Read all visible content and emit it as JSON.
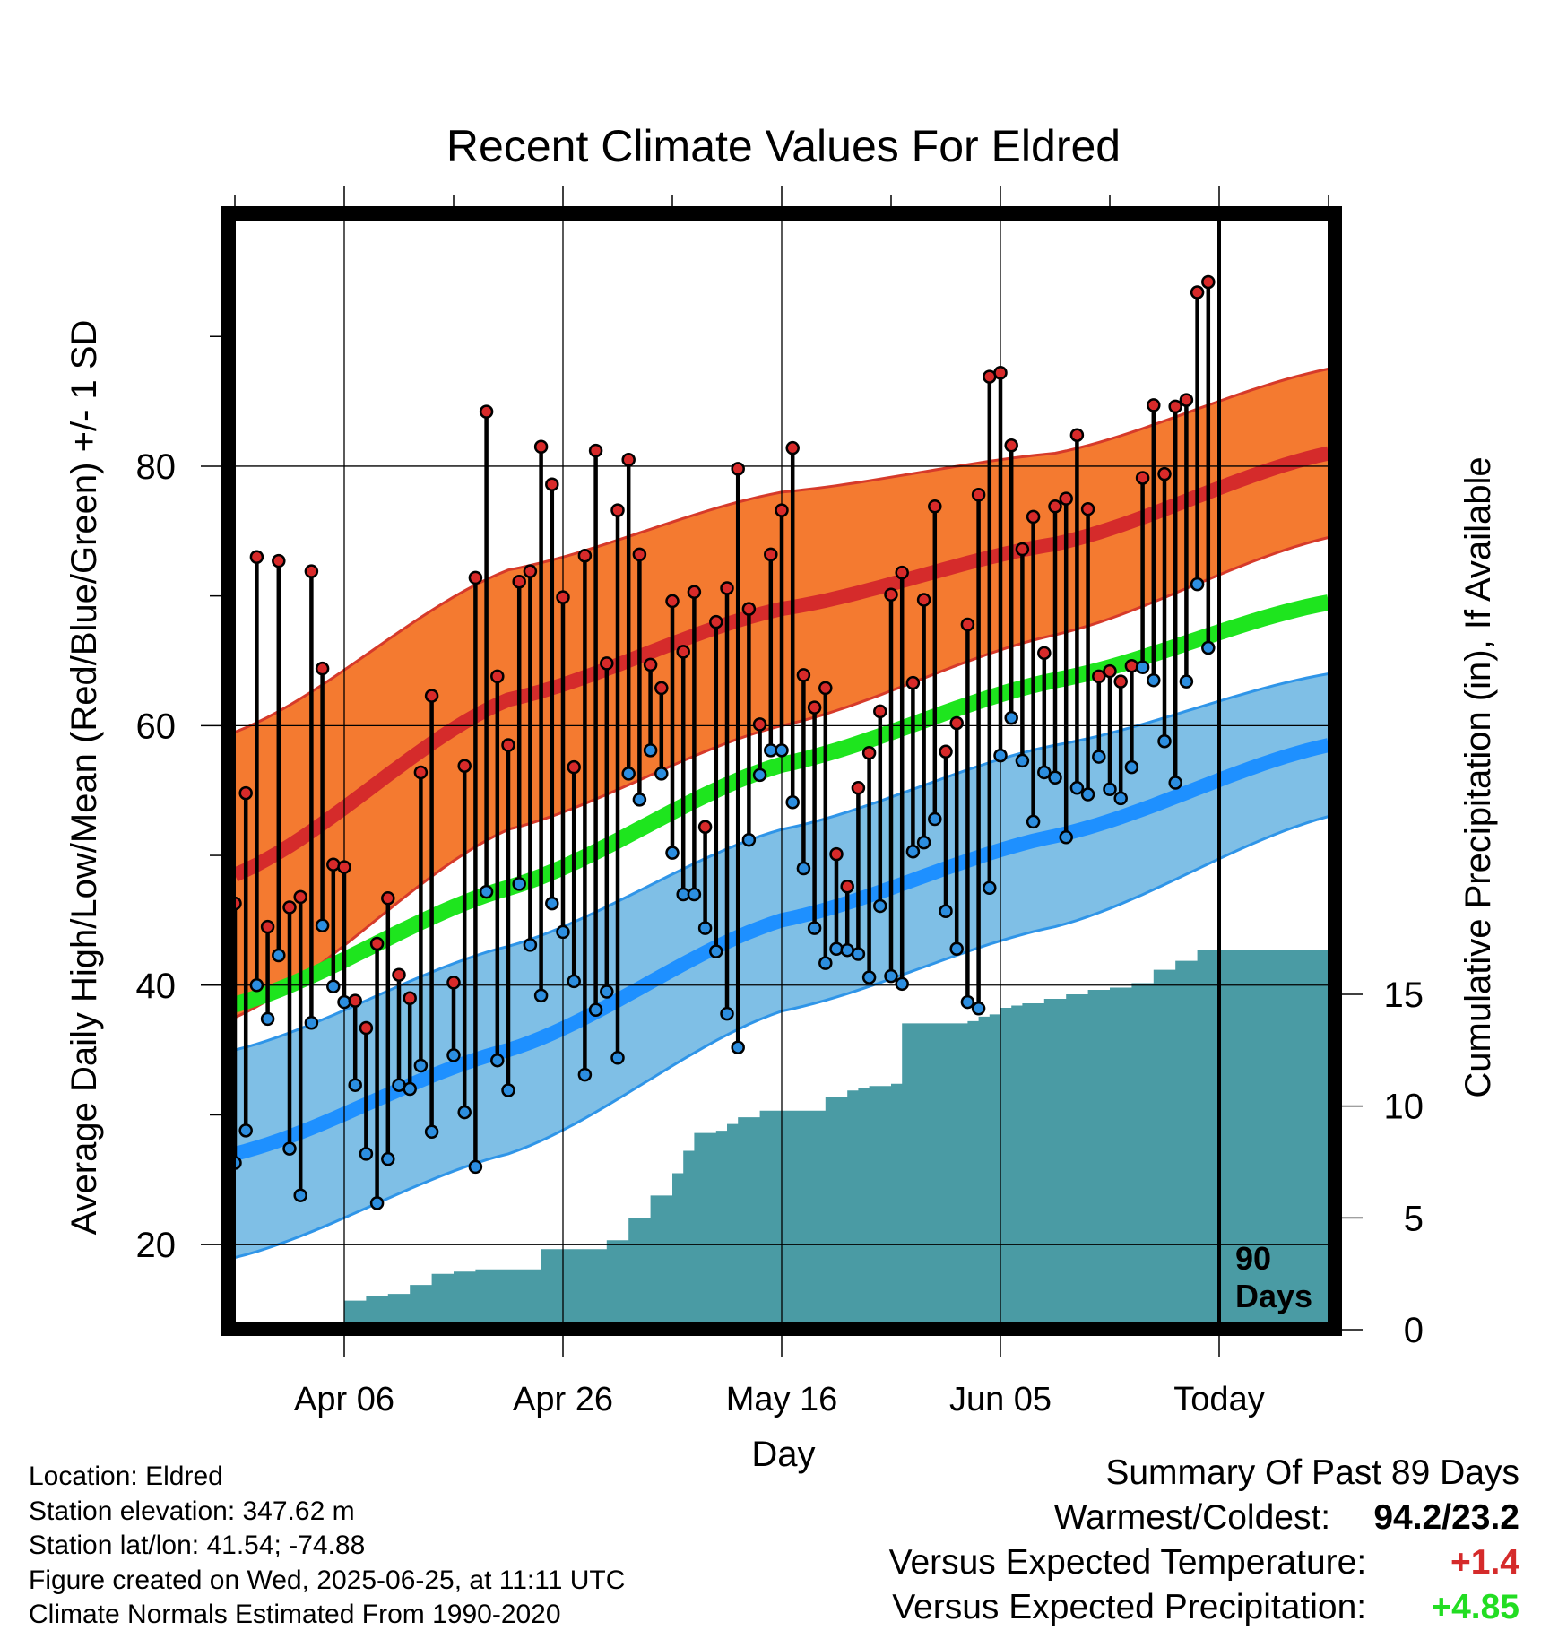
{
  "chart_data": {
    "type": "line",
    "title": "Recent Climate Values For Eldred",
    "xlabel": "Day",
    "ylabel_left": "Average Daily High/Low/Mean (Red/Blue/Green) +/- 1 SD",
    "ylabel_right": "Cumulative Precipitation (in), If Available",
    "x_tick_labels": [
      "Apr 06",
      "Apr 26",
      "May 16",
      "Jun 05",
      "Today"
    ],
    "x_tick_days": [
      10,
      30,
      50,
      70,
      90
    ],
    "x_range": [
      0,
      100
    ],
    "y_left_ticks": [
      20,
      40,
      60,
      80
    ],
    "y_left_range": [
      14,
      99
    ],
    "y_right_ticks": [
      0,
      5,
      10,
      15
    ],
    "y_right_range": [
      0,
      15
    ],
    "grid": true,
    "today_marker": {
      "day": 90,
      "label_line1": "90",
      "label_line2": "Days"
    },
    "colors": {
      "high_band": "#f47a30",
      "high_band_edge": "#d63a2a",
      "high_mean": "#d52b2b",
      "low_band": "#7fbfe6",
      "low_band_edge": "#2f95e8",
      "low_mean": "#1e90ff",
      "mean": "#1ee51e",
      "precip": "#4a9ba4",
      "high_dot": "#d82a2a",
      "low_dot": "#2c8ee0"
    },
    "normals": {
      "days": [
        0,
        25,
        50,
        75,
        100
      ],
      "high_mean": [
        48.5,
        62,
        69,
        74,
        81
      ],
      "high_sd": [
        11.0,
        10.0,
        9.0,
        7.0,
        6.5
      ],
      "low_mean": [
        27,
        35,
        45,
        51.5,
        58.5
      ],
      "low_sd": [
        8.0,
        8.0,
        7.0,
        7.0,
        5.5
      ],
      "mean": [
        38.5,
        47.5,
        57,
        63.5,
        69.5
      ]
    },
    "daily_high": [
      46.3,
      54.8,
      73.0,
      44.5,
      72.7,
      46.0,
      46.8,
      71.9,
      64.4,
      49.3,
      49.1,
      38.8,
      36.7,
      43.2,
      46.7,
      40.8,
      39.0,
      56.4,
      62.3,
      null,
      40.2,
      56.9,
      71.4,
      84.2,
      63.8,
      58.5,
      71.1,
      71.9,
      81.5,
      78.6,
      69.9,
      56.8,
      73.1,
      81.2,
      64.8,
      76.6,
      80.5,
      73.2,
      64.7,
      62.9,
      69.6,
      65.7,
      70.3,
      52.2,
      68.0,
      70.6,
      79.8,
      69.0,
      60.1,
      73.2,
      76.6,
      81.4,
      63.9,
      61.4,
      62.9,
      50.1,
      47.6,
      55.2,
      57.9,
      61.1,
      70.1,
      71.8,
      63.3,
      69.7,
      76.9,
      58.0,
      60.2,
      67.8,
      77.8,
      86.9,
      87.2,
      81.6,
      73.6,
      76.1,
      65.6,
      76.9,
      77.5,
      82.4,
      76.7,
      63.8,
      64.2,
      63.4,
      64.6,
      79.1,
      84.7,
      79.4,
      84.6,
      85.1,
      93.4,
      94.2
    ],
    "daily_low": [
      26.3,
      28.8,
      40.0,
      37.4,
      42.3,
      27.4,
      23.8,
      37.1,
      44.6,
      39.9,
      38.7,
      32.3,
      27.0,
      23.2,
      26.6,
      32.3,
      32.0,
      33.8,
      28.7,
      null,
      34.6,
      30.2,
      26.0,
      47.2,
      34.2,
      31.9,
      47.8,
      43.1,
      39.2,
      46.3,
      44.1,
      40.3,
      33.1,
      38.1,
      39.5,
      34.4,
      56.3,
      54.3,
      58.1,
      56.3,
      50.2,
      47.0,
      47.0,
      44.4,
      42.6,
      37.8,
      35.2,
      51.2,
      56.2,
      58.1,
      58.1,
      54.1,
      49.0,
      44.4,
      41.7,
      42.8,
      42.7,
      42.4,
      40.6,
      46.1,
      40.7,
      40.1,
      50.3,
      51.0,
      52.8,
      45.7,
      42.8,
      38.7,
      38.2,
      47.5,
      57.7,
      60.6,
      57.3,
      52.6,
      56.4,
      56.0,
      51.4,
      55.2,
      54.7,
      57.6,
      55.1,
      54.4,
      56.8,
      64.5,
      63.5,
      58.8,
      55.6,
      63.4,
      70.9,
      66.0
    ],
    "precip_cum": {
      "days": [
        4,
        8,
        10,
        12,
        14,
        15,
        16,
        18,
        20,
        22,
        24,
        26,
        28,
        30,
        32,
        34,
        36,
        38,
        40,
        41,
        42,
        43,
        44,
        45,
        46,
        48,
        50,
        52,
        54,
        56,
        57,
        58,
        60,
        61,
        62,
        64,
        65,
        66,
        67,
        68,
        69,
        70,
        71,
        72,
        74,
        76,
        78,
        80,
        82,
        84,
        86,
        88,
        90,
        100
      ],
      "values": [
        0.1,
        0.2,
        1.3,
        1.5,
        1.6,
        1.6,
        2.0,
        2.5,
        2.6,
        2.7,
        2.7,
        2.7,
        3.6,
        3.6,
        3.6,
        4.0,
        5.0,
        6.0,
        7.0,
        8.0,
        8.8,
        8.8,
        8.9,
        9.2,
        9.5,
        9.8,
        9.8,
        9.8,
        10.4,
        10.7,
        10.8,
        10.9,
        11.0,
        13.7,
        13.7,
        13.7,
        13.7,
        13.7,
        13.8,
        14.0,
        14.1,
        14.4,
        14.5,
        14.6,
        14.8,
        15.0,
        15.2,
        15.3,
        15.5,
        16.1,
        16.5,
        17.0,
        17.0,
        17.0
      ]
    }
  },
  "location": {
    "location_line": "Location: Eldred",
    "elevation_line": "Station elevation: 347.62 m",
    "latlon_line": "Station lat/lon: 41.54; -74.88",
    "created_line": "Figure created on Wed, 2025-06-25, at 11:11 UTC",
    "normals_line": "Climate Normals Estimated From 1990-2020"
  },
  "summary": {
    "title": "Summary Of Past 89 Days",
    "warmest_coldest_label": "Warmest/Coldest:",
    "warmest_coldest_value": "94.2/23.2",
    "temp_label": "Versus Expected Temperature:",
    "temp_value": "+1.4",
    "temp_color": "#d52b2b",
    "precip_label": "Versus Expected Precipitation:",
    "precip_value": "+4.85",
    "precip_color": "#22dd22"
  }
}
